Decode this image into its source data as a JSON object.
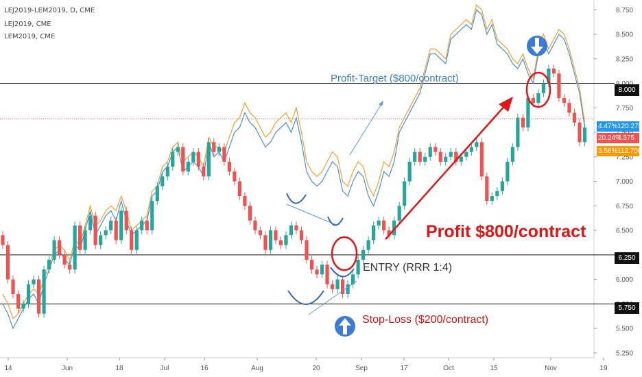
{
  "legend": {
    "main": "LEJ2019-LEM2019, D, CME",
    "leg1": "LEJ2019, CME",
    "leg2": "LEM2019, CME"
  },
  "annotations": {
    "profit_target": "Profit-Target ($800/contract)",
    "profit": "Profit $800/contract",
    "entry": "ENTRY (RRR 1:4)",
    "stop_loss": "Stop-Loss ($200/contract)"
  },
  "price_axis": {
    "ticks": [
      "8.750",
      "8.500",
      "8.250",
      "8.000",
      "7.750",
      "7.500",
      "7.250",
      "7.000",
      "6.750",
      "6.500",
      "6.250",
      "6.000",
      "5.750",
      "5.500",
      "5.250"
    ]
  },
  "time_axis": {
    "labels": [
      "14",
      "Jun",
      "18",
      "Jul",
      "16",
      "Aug",
      "20",
      "Sep",
      "17",
      "Oct",
      "15",
      "Nov",
      "19"
    ]
  },
  "levels": {
    "target": "8.000",
    "entry": "6.250",
    "stop": "5.750"
  },
  "badges": {
    "blue": {
      "pct": "4.47%",
      "value": "120.275",
      "color": "#2196f3"
    },
    "red": {
      "pct": "20.24%",
      "value": "7.575",
      "color": "#ef5350"
    },
    "orange": {
      "pct": "3.56%",
      "value": "112.700",
      "color": "#ff9800"
    }
  },
  "colors": {
    "up": "#26a69a",
    "down": "#ef5350",
    "leg1_line": "#4a90d9",
    "leg2_line": "#f0a030",
    "arrow_red": "#e01515",
    "arrow_blue": "#3b82c4"
  },
  "chart_data": {
    "type": "candlestick",
    "title": "LEJ2019-LEM2019, D, CME",
    "x_ticks": [
      "14",
      "Jun",
      "18",
      "Jul",
      "16",
      "Aug",
      "20",
      "Sep",
      "17",
      "Oct",
      "15",
      "Nov",
      "19"
    ],
    "ylim": [
      5.2,
      8.85
    ],
    "y_ticks": [
      5.25,
      5.5,
      5.75,
      6.0,
      6.25,
      6.5,
      6.75,
      7.0,
      7.25,
      7.5,
      7.75,
      8.0,
      8.25,
      8.5,
      8.75
    ],
    "spread_close": [
      6.35,
      6.0,
      5.85,
      5.7,
      5.75,
      5.95,
      6.0,
      5.65,
      6.1,
      6.2,
      6.4,
      6.25,
      6.15,
      6.1,
      6.55,
      6.3,
      6.5,
      6.65,
      6.35,
      6.45,
      6.5,
      6.6,
      6.4,
      6.7,
      6.5,
      6.3,
      6.5,
      6.6,
      6.5,
      6.8,
      6.95,
      7.05,
      7.15,
      7.3,
      7.35,
      7.1,
      7.2,
      7.3,
      7.15,
      7.05,
      7.4,
      7.3,
      7.35,
      7.2,
      7.1,
      7.0,
      6.85,
      6.75,
      6.6,
      6.5,
      6.45,
      6.3,
      6.5,
      6.4,
      6.35,
      6.45,
      6.55,
      6.5,
      6.4,
      6.2,
      6.1,
      6.05,
      6.15,
      5.95,
      5.9,
      6.0,
      5.85,
      5.95,
      6.05,
      6.2,
      6.3,
      6.4,
      6.55,
      6.6,
      6.5,
      6.45,
      6.6,
      6.75,
      7.0,
      7.2,
      7.3,
      7.2,
      7.25,
      7.35,
      7.3,
      7.2,
      7.25,
      7.3,
      7.2,
      7.25,
      7.3,
      7.35,
      7.4,
      7.05,
      6.8,
      6.85,
      6.9,
      7.0,
      7.2,
      7.35,
      7.65,
      7.55,
      7.85,
      7.8,
      7.9,
      8.0,
      8.15,
      8.1,
      7.85,
      7.8,
      7.7,
      7.6,
      7.4,
      7.55
    ],
    "series": [
      {
        "name": "LEJ2019, CME",
        "color": "#4a90d9",
        "values": [
          5.75,
          5.65,
          5.5,
          5.6,
          5.7,
          5.8,
          5.85,
          5.75,
          5.95,
          6.1,
          6.25,
          6.3,
          6.2,
          6.15,
          6.35,
          6.3,
          6.5,
          6.7,
          6.45,
          6.55,
          6.65,
          6.7,
          6.6,
          6.8,
          6.6,
          6.45,
          6.5,
          6.55,
          6.6,
          6.85,
          6.9,
          7.1,
          7.15,
          7.3,
          7.35,
          7.1,
          7.15,
          7.2,
          7.15,
          7.05,
          7.4,
          7.25,
          7.3,
          7.2,
          7.35,
          7.5,
          7.55,
          7.7,
          7.6,
          7.55,
          7.45,
          7.35,
          7.4,
          7.5,
          7.55,
          7.6,
          7.5,
          7.65,
          7.4,
          7.1,
          7.0,
          6.95,
          7.0,
          7.1,
          7.2,
          7.15,
          6.9,
          6.85,
          7.0,
          7.1,
          7.05,
          6.85,
          6.75,
          6.9,
          7.1,
          7.05,
          7.2,
          7.5,
          7.6,
          7.7,
          7.8,
          7.9,
          8.1,
          8.3,
          8.3,
          8.25,
          8.2,
          8.45,
          8.5,
          8.55,
          8.6,
          8.55,
          8.75,
          8.7,
          8.5,
          8.6,
          8.4,
          8.35,
          8.3,
          8.2,
          8.15,
          8.25,
          8.1,
          8.0,
          8.3,
          8.45,
          8.3,
          8.4,
          8.5,
          8.45,
          8.3,
          8.1,
          7.9,
          7.55
        ]
      },
      {
        "name": "LEM2019, CME",
        "color": "#f0a030",
        "values": [
          5.85,
          5.75,
          5.6,
          5.65,
          5.75,
          5.85,
          5.9,
          5.85,
          6.0,
          6.15,
          6.3,
          6.35,
          6.3,
          6.2,
          6.4,
          6.35,
          6.55,
          6.75,
          6.55,
          6.6,
          6.7,
          6.75,
          6.7,
          6.85,
          6.7,
          6.5,
          6.55,
          6.6,
          6.65,
          6.9,
          6.95,
          7.15,
          7.2,
          7.35,
          7.4,
          7.2,
          7.25,
          7.3,
          7.25,
          7.15,
          7.45,
          7.35,
          7.35,
          7.3,
          7.45,
          7.6,
          7.65,
          7.8,
          7.7,
          7.65,
          7.55,
          7.45,
          7.5,
          7.6,
          7.65,
          7.7,
          7.6,
          7.75,
          7.5,
          7.2,
          7.1,
          7.05,
          7.1,
          7.2,
          7.3,
          7.25,
          7.0,
          6.95,
          7.1,
          7.2,
          7.15,
          6.95,
          6.85,
          7.0,
          7.2,
          7.15,
          7.3,
          7.55,
          7.65,
          7.75,
          7.85,
          7.95,
          8.15,
          8.35,
          8.35,
          8.3,
          8.25,
          8.5,
          8.55,
          8.6,
          8.65,
          8.6,
          8.8,
          8.75,
          8.55,
          8.65,
          8.45,
          8.4,
          8.35,
          8.25,
          8.2,
          8.3,
          8.15,
          8.05,
          8.35,
          8.5,
          8.35,
          8.45,
          8.55,
          8.5,
          8.35,
          8.15,
          7.95,
          7.6
        ]
      }
    ],
    "horizontal_levels": [
      8.0,
      6.25,
      5.75
    ],
    "current_price": 7.575
  }
}
